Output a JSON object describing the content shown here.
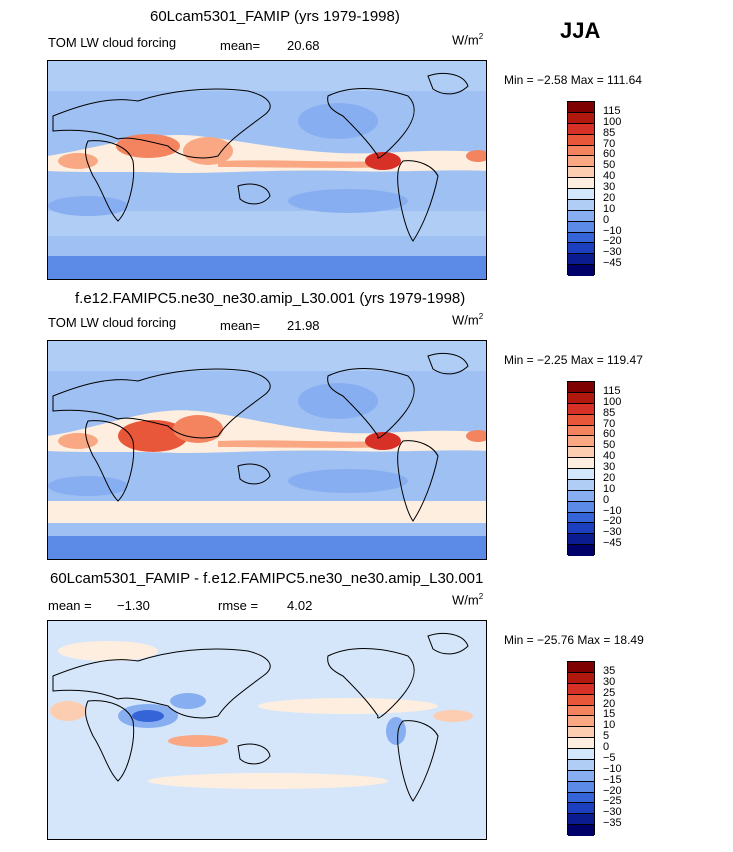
{
  "season": "JJA",
  "panels": [
    {
      "title": "60Lcam5301_FAMIP (yrs 1979-1998)",
      "variable": "TOM LW cloud forcing",
      "mean_label": "mean=",
      "mean": "20.68",
      "units_base": "W/m",
      "units_exp": "2",
      "minmax": "Min =  −2.58 Max = 111.64",
      "colorbar_labels": [
        "115",
        "100",
        "85",
        "70",
        "60",
        "50",
        "40",
        "30",
        "20",
        "10",
        "0",
        "−10",
        "−20",
        "−30",
        "−45"
      ]
    },
    {
      "title": "f.e12.FAMIPC5.ne30_ne30.amip_L30.001 (yrs 1979-1998)",
      "variable": "TOM LW cloud forcing",
      "mean_label": "mean=",
      "mean": "21.98",
      "units_base": "W/m",
      "units_exp": "2",
      "minmax": "Min =  −2.25 Max = 119.47",
      "colorbar_labels": [
        "115",
        "100",
        "85",
        "70",
        "60",
        "50",
        "40",
        "30",
        "20",
        "10",
        "0",
        "−10",
        "−20",
        "−30",
        "−45"
      ]
    },
    {
      "title": "60Lcam5301_FAMIP - f.e12.FAMIPC5.ne30_ne30.amip_L30.001",
      "mean_label": "mean =",
      "mean": "−1.30",
      "rmse_label": "rmse =",
      "rmse": "4.02",
      "units_base": "W/m",
      "units_exp": "2",
      "minmax": "Min = −25.76 Max =  18.49",
      "colorbar_labels": [
        "35",
        "30",
        "25",
        "20",
        "15",
        "10",
        "5",
        "0",
        "−5",
        "−10",
        "−15",
        "−20",
        "−25",
        "−30",
        "−35"
      ]
    }
  ],
  "colors": {
    "abs_scale": [
      "#7f0000",
      "#b2180e",
      "#d73027",
      "#e9573a",
      "#f4845f",
      "#f9a883",
      "#fccdb0",
      "#fdeee0",
      "#d4e6fb",
      "#b0cdf5",
      "#87aef0",
      "#5b8be6",
      "#3564d8",
      "#1b3fbf",
      "#0a1c8f",
      "#00006b"
    ],
    "diff_scale": [
      "#7f0000",
      "#b2180e",
      "#d73027",
      "#e9573a",
      "#f4845f",
      "#f9a883",
      "#fccdb0",
      "#fdeee0",
      "#d4e6fb",
      "#b0cdf5",
      "#87aef0",
      "#5b8be6",
      "#3564d8",
      "#1b3fbf",
      "#0a1c8f",
      "#00006b"
    ],
    "ocean_abs": "#9fc0f2",
    "ocean_diff": "#d6e6fa"
  }
}
